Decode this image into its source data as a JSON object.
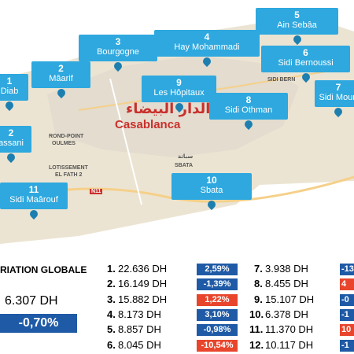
{
  "callouts": [
    {
      "number": "1",
      "name": "Diab"
    },
    {
      "number": "2",
      "name": "Mâarif"
    },
    {
      "number": "3",
      "name": "Bourgogne"
    },
    {
      "number": "4",
      "name": "Hay Mohammadi"
    },
    {
      "number": "5",
      "name": "Ain Sebâa"
    },
    {
      "number": "6",
      "name": "Sidi Bernoussi"
    },
    {
      "number": "7",
      "name": "Sidi Moun"
    },
    {
      "number": "8",
      "name": "Sidi Othman"
    },
    {
      "number": "9",
      "name": "Les Hôpitaux"
    },
    {
      "number": "10",
      "name": "Sbata"
    },
    {
      "number": "11",
      "name": "Sidi Maârouf"
    },
    {
      "number": "2",
      "name": "assani"
    }
  ],
  "map_labels": {
    "city": "Casablanca",
    "city_arabic": "الدار البيضاء",
    "rond_point": "ROND-POINT",
    "oulmes": "OULMES",
    "lotissement": "LOTISSEMENT",
    "el_fath": "EL FATH 2",
    "sbata": "SBATA",
    "sbata_arabic": "سباتة",
    "sidi_bern": "SIDI BERN",
    "road": "N11"
  },
  "summary": {
    "title": "RIATION GLOBALE",
    "price": "6.307 DH",
    "change": "-0,70%",
    "color": "#1f5aa6"
  },
  "rows": [
    {
      "rank": "1.",
      "price": "22.636 DH",
      "change": "2,59%",
      "color": "#1f5aa6"
    },
    {
      "rank": "2.",
      "price": "16.149 DH",
      "change": "-1,39%",
      "color": "#1f5aa6"
    },
    {
      "rank": "3.",
      "price": "15.882 DH",
      "change": "1,22%",
      "color": "#e8452c"
    },
    {
      "rank": "4.",
      "price": "8.173 DH",
      "change": "3,10%",
      "color": "#1f5aa6"
    },
    {
      "rank": "5.",
      "price": "8.857 DH",
      "change": "-0,98%",
      "color": "#1f5aa6"
    },
    {
      "rank": "6.",
      "price": "8.045 DH",
      "change": "-10,54%",
      "color": "#e8452c"
    },
    {
      "rank": "7.",
      "price": "3.938 DH",
      "change": "-13",
      "color": "#1f5aa6"
    },
    {
      "rank": "8.",
      "price": "8.455 DH",
      "change": "4",
      "color": "#e8452c"
    },
    {
      "rank": "9.",
      "price": "15.107 DH",
      "change": "-0",
      "color": "#1f5aa6"
    },
    {
      "rank": "10.",
      "price": "6.378 DH",
      "change": "-1",
      "color": "#1f5aa6"
    },
    {
      "rank": "11.",
      "price": "11.370 DH",
      "change": "10",
      "color": "#e8452c"
    },
    {
      "rank": "12.",
      "price": "10.117 DH",
      "change": "-1",
      "color": "#1f5aa6"
    }
  ]
}
